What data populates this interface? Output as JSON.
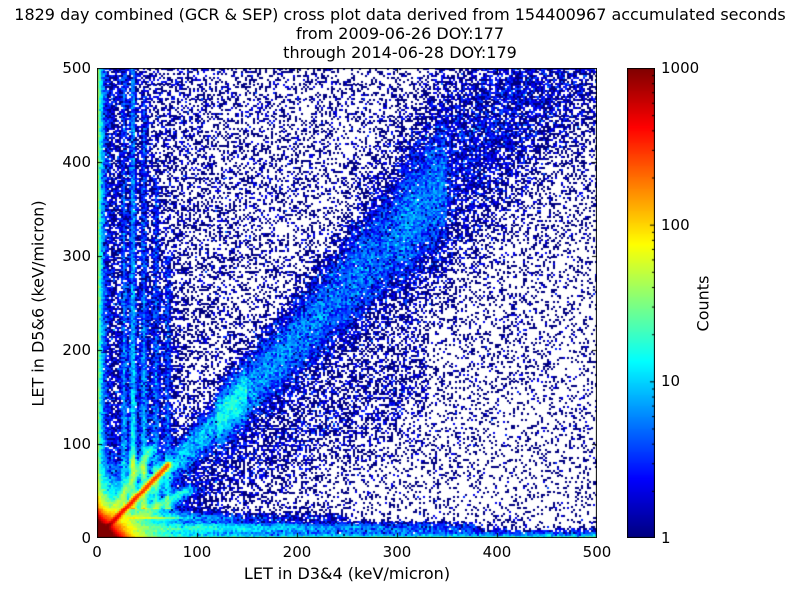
{
  "chart_data": {
    "type": "heatmap",
    "title_lines": [
      "1829 day combined (GCR & SEP) cross plot data derived from 154400967 accumulated seconds",
      "from 2009-06-26 DOY:177",
      "through 2014-06-28 DOY:179"
    ],
    "xlabel": "LET in D3&4 (keV/micron)",
    "ylabel": "LET in D5&6 (keV/micron)",
    "xlim": [
      0,
      500
    ],
    "ylim": [
      0,
      500
    ],
    "xticks": [
      0,
      100,
      200,
      300,
      400,
      500
    ],
    "yticks": [
      0,
      100,
      200,
      300,
      400,
      500
    ],
    "grid": false,
    "colorbar": {
      "label": "Counts",
      "scale": "log",
      "min": 1,
      "max": 1000,
      "ticks": [
        1,
        10,
        100,
        1000
      ],
      "colormap": "jet"
    },
    "bins": 250,
    "seed": 20090626,
    "density_features": [
      {
        "kind": "exp_blob",
        "n": 200000,
        "mx": 6,
        "my": 6
      },
      {
        "kind": "exp_blob",
        "n": 30000,
        "mx": 18,
        "my": 18
      },
      {
        "kind": "streak",
        "n": 40000,
        "x0": 0,
        "y0": 0,
        "x1": 72,
        "y1": 78,
        "sigma": 1.4,
        "bias": 1.6
      },
      {
        "kind": "streak",
        "n": 5000,
        "x0": 0,
        "y0": 0,
        "x1": 55,
        "y1": 96,
        "sigma": 2.5,
        "bias": 1.4
      },
      {
        "kind": "streak",
        "n": 4000,
        "x0": 0,
        "y0": 0,
        "x1": 95,
        "y1": 52,
        "sigma": 3,
        "bias": 1.4
      },
      {
        "kind": "diag",
        "n": 10000,
        "xmin": 0,
        "xmax": 150,
        "slope": 1.0,
        "curve": 0.00025,
        "sig0": 4,
        "sigk": 0.08
      },
      {
        "kind": "diag",
        "n": 20000,
        "xmin": 120,
        "xmax": 350,
        "slope": 1.0,
        "curve": 0.00025,
        "sig0": 6,
        "sigk": 0.09
      },
      {
        "kind": "diag",
        "n": 8000,
        "xmin": 300,
        "xmax": 500,
        "slope": 1.0,
        "curve": 0.00025,
        "sig0": 10,
        "sigk": 0.12
      },
      {
        "kind": "diag",
        "n": 4000,
        "xmin": 250,
        "xmax": 500,
        "slope": 1.15,
        "curve": 0,
        "sig0": 50,
        "sigk": 0.05
      },
      {
        "kind": "diag",
        "n": 3500,
        "xmin": 30,
        "xmax": 330,
        "slope": 0.55,
        "curve": 0,
        "sig0": 10,
        "sigk": 0.1
      },
      {
        "kind": "vline",
        "n": 5000,
        "x": 36,
        "y0": 30,
        "y1": 500,
        "sigma": 1.8,
        "bias": 2.0
      },
      {
        "kind": "vline",
        "n": 3000,
        "x": 47,
        "y0": 30,
        "y1": 470,
        "sigma": 1.8,
        "bias": 2.2
      },
      {
        "kind": "vline",
        "n": 1800,
        "x": 59,
        "y0": 30,
        "y1": 380,
        "sigma": 1.8,
        "bias": 2.0
      },
      {
        "kind": "vline",
        "n": 1400,
        "x": 71,
        "y0": 30,
        "y1": 300,
        "sigma": 1.8,
        "bias": 2.0
      },
      {
        "kind": "vline",
        "n": 2600,
        "x": 27,
        "y0": 30,
        "y1": 500,
        "sigma": 1.6,
        "bias": 2.2
      },
      {
        "kind": "vline",
        "n": 6000,
        "x": 48,
        "y0": 20,
        "y1": 260,
        "sigma": 18,
        "bias": 2.5
      },
      {
        "kind": "blob",
        "n": 900,
        "cx": 36,
        "cy": 78,
        "sx": 2,
        "sy": 7
      },
      {
        "kind": "blob",
        "n": 600,
        "cx": 47,
        "cy": 70,
        "sx": 2,
        "sy": 6
      },
      {
        "kind": "blob",
        "n": 400,
        "cx": 59,
        "cy": 64,
        "sx": 2,
        "sy": 6
      },
      {
        "kind": "hband",
        "n": 9000,
        "y": 10,
        "sigma": 3.5,
        "xscale": 150,
        "xmax": 380
      },
      {
        "kind": "hband",
        "n": 3000,
        "y": 21,
        "sigma": 3,
        "xscale": 80,
        "xmax": 250
      },
      {
        "kind": "edge_v",
        "n": 15000,
        "scale": 2.5
      },
      {
        "kind": "edge_h",
        "n": 7000,
        "scale": 2.5
      },
      {
        "kind": "scatter",
        "n": 22000,
        "xpow": 2.2,
        "ypow": 0.85
      },
      {
        "kind": "scatter",
        "n": 4000,
        "xpow": 1,
        "ypow": 1
      }
    ]
  }
}
